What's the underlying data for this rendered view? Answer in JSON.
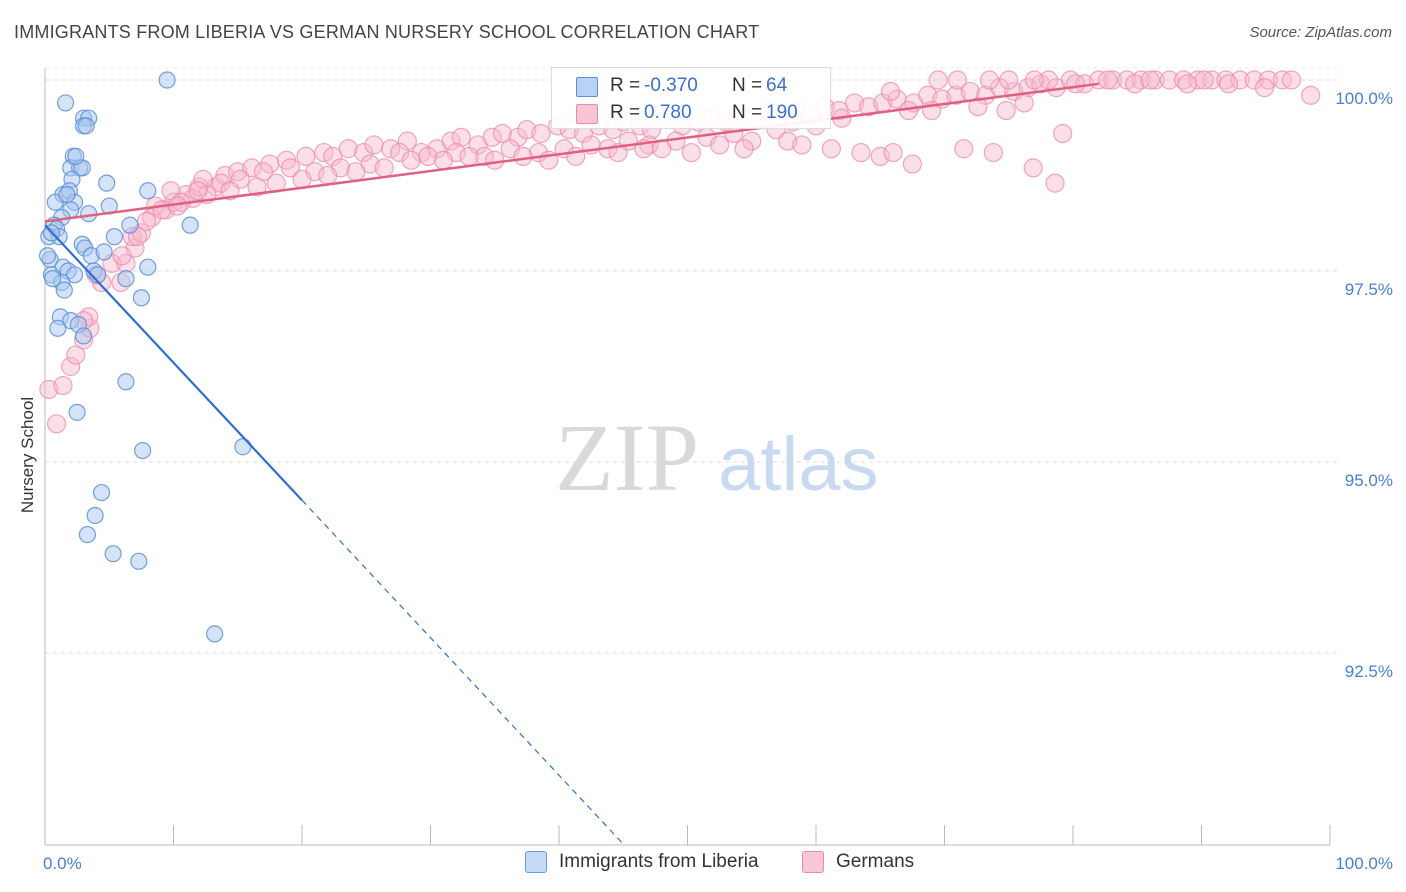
{
  "title": "IMMIGRANTS FROM LIBERIA VS GERMAN NURSERY SCHOOL CORRELATION CHART",
  "source": "Source: ZipAtlas.com",
  "colors": {
    "blue_fill": "#aac8f0",
    "blue_stroke": "#5a8fd8",
    "blue_line": "#2f6fd0",
    "pink_fill": "#f7b8cc",
    "pink_stroke": "#ec8aaa",
    "pink_line": "#e0607f",
    "axis_text": "#4a7fd4",
    "grid": "#dddddd"
  },
  "legend": {
    "rows": [
      {
        "r_label": "R =",
        "r_value": "-0.370",
        "n_label": "N =",
        "n_value": "64"
      },
      {
        "r_label": "R =",
        "r_value": "0.780",
        "n_label": "N =",
        "n_value": "190"
      }
    ]
  },
  "chart_data": {
    "type": "scatter",
    "title": "IMMIGRANTS FROM LIBERIA VS GERMAN NURSERY SCHOOL CORRELATION CHART",
    "xlabel": "",
    "ylabel": "Nursery School",
    "xlim": [
      0,
      100
    ],
    "ylim": [
      90.0,
      100.25
    ],
    "x_tick_labels": [
      "0.0%",
      "100.0%"
    ],
    "y_ticks": [
      92.5,
      95.0,
      97.5,
      100.0
    ],
    "y_tick_labels": [
      "92.5%",
      "95.0%",
      "97.5%",
      "100.0%"
    ],
    "watermark": {
      "zip": "ZIP",
      "atlas": "atlas"
    },
    "series": [
      {
        "name": "Immigrants from Liberia",
        "R": -0.37,
        "N": 64,
        "trend": {
          "x0": 0.0,
          "y0": 98.1,
          "x1": 20.0,
          "y1": 94.5,
          "dash_to_x": 45.0
        },
        "points": [
          [
            9.5,
            100.0
          ],
          [
            1.6,
            99.7
          ],
          [
            3.0,
            99.5
          ],
          [
            3.4,
            99.5
          ],
          [
            3.0,
            99.4
          ],
          [
            3.2,
            99.4
          ],
          [
            2.2,
            99.0
          ],
          [
            2.0,
            98.85
          ],
          [
            2.7,
            98.85
          ],
          [
            2.9,
            98.85
          ],
          [
            2.1,
            98.7
          ],
          [
            4.8,
            98.65
          ],
          [
            8.0,
            98.55
          ],
          [
            1.4,
            98.5
          ],
          [
            1.9,
            98.55
          ],
          [
            0.8,
            98.4
          ],
          [
            2.3,
            98.4
          ],
          [
            5.0,
            98.35
          ],
          [
            2.0,
            98.3
          ],
          [
            3.4,
            98.25
          ],
          [
            1.3,
            98.2
          ],
          [
            0.7,
            98.1
          ],
          [
            0.9,
            98.05
          ],
          [
            6.6,
            98.1
          ],
          [
            11.3,
            98.1
          ],
          [
            0.3,
            97.95
          ],
          [
            1.1,
            97.95
          ],
          [
            5.4,
            97.95
          ],
          [
            0.5,
            98.0
          ],
          [
            2.9,
            97.85
          ],
          [
            3.1,
            97.8
          ],
          [
            3.6,
            97.7
          ],
          [
            4.6,
            97.75
          ],
          [
            0.4,
            97.65
          ],
          [
            1.4,
            97.55
          ],
          [
            3.8,
            97.5
          ],
          [
            8.0,
            97.55
          ],
          [
            0.5,
            97.45
          ],
          [
            1.8,
            97.5
          ],
          [
            2.3,
            97.45
          ],
          [
            4.1,
            97.45
          ],
          [
            6.3,
            97.4
          ],
          [
            1.3,
            97.35
          ],
          [
            0.6,
            97.4
          ],
          [
            1.5,
            97.25
          ],
          [
            7.5,
            97.15
          ],
          [
            1.2,
            96.9
          ],
          [
            2.0,
            96.85
          ],
          [
            2.6,
            96.8
          ],
          [
            1.0,
            96.75
          ],
          [
            3.0,
            96.65
          ],
          [
            6.3,
            96.05
          ],
          [
            2.5,
            95.65
          ],
          [
            7.6,
            95.15
          ],
          [
            15.4,
            95.2
          ],
          [
            4.4,
            94.6
          ],
          [
            3.9,
            94.3
          ],
          [
            3.3,
            94.05
          ],
          [
            5.3,
            93.8
          ],
          [
            7.3,
            93.7
          ],
          [
            13.2,
            92.75
          ],
          [
            0.2,
            97.7
          ],
          [
            1.7,
            98.5
          ],
          [
            2.4,
            99.0
          ]
        ]
      },
      {
        "name": "Germans",
        "R": 0.78,
        "N": 190,
        "trend": {
          "x0": 0.0,
          "y0": 98.15,
          "x1": 82.0,
          "y1": 99.95
        },
        "points": [
          [
            0.3,
            95.95
          ],
          [
            1.4,
            96.0
          ],
          [
            0.9,
            95.5
          ],
          [
            2.0,
            96.25
          ],
          [
            2.4,
            96.4
          ],
          [
            3.0,
            96.6
          ],
          [
            3.5,
            96.75
          ],
          [
            3.4,
            96.9
          ],
          [
            4.4,
            97.35
          ],
          [
            5.9,
            97.35
          ],
          [
            5.2,
            97.6
          ],
          [
            6.3,
            97.6
          ],
          [
            7.0,
            97.8
          ],
          [
            6.8,
            97.95
          ],
          [
            7.5,
            98.0
          ],
          [
            8.3,
            98.2
          ],
          [
            9.4,
            98.3
          ],
          [
            8.6,
            98.35
          ],
          [
            10.0,
            98.4
          ],
          [
            11.0,
            98.5
          ],
          [
            9.8,
            98.55
          ],
          [
            12.0,
            98.6
          ],
          [
            13.3,
            98.6
          ],
          [
            12.3,
            98.7
          ],
          [
            14.0,
            98.75
          ],
          [
            15.0,
            98.8
          ],
          [
            16.1,
            98.85
          ],
          [
            17.5,
            98.9
          ],
          [
            18.8,
            98.95
          ],
          [
            20.3,
            99.0
          ],
          [
            21.7,
            99.05
          ],
          [
            22.4,
            99.0
          ],
          [
            23.6,
            99.1
          ],
          [
            24.8,
            99.05
          ],
          [
            25.6,
            99.15
          ],
          [
            26.9,
            99.1
          ],
          [
            28.2,
            99.2
          ],
          [
            29.3,
            99.05
          ],
          [
            30.5,
            99.1
          ],
          [
            31.6,
            99.2
          ],
          [
            32.4,
            99.25
          ],
          [
            33.7,
            99.15
          ],
          [
            34.8,
            99.25
          ],
          [
            35.6,
            99.3
          ],
          [
            36.8,
            99.25
          ],
          [
            37.5,
            99.35
          ],
          [
            38.6,
            99.3
          ],
          [
            39.9,
            99.4
          ],
          [
            40.8,
            99.35
          ],
          [
            41.9,
            99.3
          ],
          [
            43.1,
            99.4
          ],
          [
            44.2,
            99.35
          ],
          [
            45.0,
            99.45
          ],
          [
            46.3,
            99.4
          ],
          [
            47.2,
            99.35
          ],
          [
            48.5,
            99.5
          ],
          [
            49.6,
            99.4
          ],
          [
            50.8,
            99.45
          ],
          [
            51.9,
            99.5
          ],
          [
            53.0,
            99.45
          ],
          [
            54.2,
            99.55
          ],
          [
            55.3,
            99.5
          ],
          [
            56.4,
            99.6
          ],
          [
            57.2,
            99.55
          ],
          [
            58.5,
            99.6
          ],
          [
            59.6,
            99.55
          ],
          [
            60.7,
            99.65
          ],
          [
            61.8,
            99.6
          ],
          [
            63.0,
            99.7
          ],
          [
            64.1,
            99.65
          ],
          [
            65.2,
            99.7
          ],
          [
            66.3,
            99.75
          ],
          [
            67.6,
            99.7
          ],
          [
            68.7,
            99.8
          ],
          [
            69.8,
            99.75
          ],
          [
            70.9,
            99.8
          ],
          [
            72.0,
            99.85
          ],
          [
            73.2,
            99.8
          ],
          [
            74.3,
            99.9
          ],
          [
            75.4,
            99.85
          ],
          [
            76.5,
            99.9
          ],
          [
            77.5,
            99.95
          ],
          [
            78.7,
            99.9
          ],
          [
            79.8,
            100.0
          ],
          [
            80.9,
            99.95
          ],
          [
            82.0,
            100.0
          ],
          [
            83.1,
            100.0
          ],
          [
            84.2,
            100.0
          ],
          [
            85.3,
            100.0
          ],
          [
            86.4,
            100.0
          ],
          [
            87.5,
            100.0
          ],
          [
            88.6,
            100.0
          ],
          [
            89.7,
            100.0
          ],
          [
            90.8,
            100.0
          ],
          [
            91.9,
            100.0
          ],
          [
            93.0,
            100.0
          ],
          [
            94.1,
            100.0
          ],
          [
            95.2,
            100.0
          ],
          [
            96.3,
            100.0
          ],
          [
            97.0,
            100.0
          ],
          [
            75.0,
            100.0
          ],
          [
            73.5,
            100.0
          ],
          [
            71.0,
            100.0
          ],
          [
            69.5,
            100.0
          ],
          [
            84.8,
            99.95
          ],
          [
            88.9,
            99.95
          ],
          [
            92.1,
            99.95
          ],
          [
            94.9,
            99.9
          ],
          [
            98.5,
            99.8
          ],
          [
            86.0,
            100.0
          ],
          [
            90.2,
            100.0
          ],
          [
            82.7,
            100.0
          ],
          [
            80.2,
            99.95
          ],
          [
            78.1,
            100.0
          ],
          [
            77.0,
            100.0
          ],
          [
            65.8,
            99.85
          ],
          [
            67.2,
            99.6
          ],
          [
            69.0,
            99.6
          ],
          [
            72.6,
            99.65
          ],
          [
            74.8,
            99.6
          ],
          [
            76.2,
            99.7
          ],
          [
            62.0,
            99.5
          ],
          [
            60.0,
            99.4
          ],
          [
            58.2,
            99.45
          ],
          [
            56.9,
            99.35
          ],
          [
            55.0,
            99.2
          ],
          [
            53.6,
            99.3
          ],
          [
            51.5,
            99.25
          ],
          [
            49.1,
            99.2
          ],
          [
            47.0,
            99.15
          ],
          [
            45.4,
            99.2
          ],
          [
            43.8,
            99.1
          ],
          [
            42.5,
            99.15
          ],
          [
            40.4,
            99.1
          ],
          [
            38.4,
            99.05
          ],
          [
            36.2,
            99.1
          ],
          [
            34.2,
            99.0
          ],
          [
            32.0,
            99.05
          ],
          [
            29.8,
            99.0
          ],
          [
            27.6,
            99.05
          ],
          [
            25.3,
            98.9
          ],
          [
            23.0,
            98.85
          ],
          [
            21.0,
            98.8
          ],
          [
            19.1,
            98.85
          ],
          [
            17.0,
            98.8
          ],
          [
            15.2,
            98.7
          ],
          [
            13.7,
            98.65
          ],
          [
            12.6,
            98.5
          ],
          [
            11.5,
            98.45
          ],
          [
            10.6,
            98.4
          ],
          [
            9.1,
            98.3
          ],
          [
            7.9,
            98.15
          ],
          [
            48.0,
            99.1
          ],
          [
            52.5,
            99.15
          ],
          [
            57.8,
            99.2
          ],
          [
            61.2,
            99.1
          ],
          [
            63.5,
            99.05
          ],
          [
            65.0,
            99.0
          ],
          [
            67.5,
            98.9
          ],
          [
            66.0,
            99.05
          ],
          [
            71.5,
            99.1
          ],
          [
            73.8,
            99.05
          ],
          [
            76.9,
            98.85
          ],
          [
            79.2,
            99.3
          ],
          [
            78.6,
            98.65
          ],
          [
            58.9,
            99.15
          ],
          [
            54.4,
            99.1
          ],
          [
            50.3,
            99.05
          ],
          [
            46.6,
            99.1
          ],
          [
            44.6,
            99.05
          ],
          [
            41.3,
            99.0
          ],
          [
            39.2,
            98.95
          ],
          [
            37.2,
            99.0
          ],
          [
            35.0,
            98.95
          ],
          [
            33.0,
            99.0
          ],
          [
            31.0,
            98.95
          ],
          [
            28.5,
            98.95
          ],
          [
            26.4,
            98.85
          ],
          [
            24.2,
            98.8
          ],
          [
            22.0,
            98.75
          ],
          [
            20.0,
            98.7
          ],
          [
            18.0,
            98.65
          ],
          [
            16.5,
            98.6
          ],
          [
            14.4,
            98.55
          ],
          [
            11.9,
            98.55
          ],
          [
            10.3,
            98.35
          ],
          [
            7.2,
            97.95
          ],
          [
            6.0,
            97.7
          ],
          [
            4.0,
            97.45
          ],
          [
            3.0,
            96.85
          ]
        ]
      }
    ]
  },
  "bottom_legend": {
    "items": [
      {
        "label": "Immigrants from Liberia"
      },
      {
        "label": "Germans"
      }
    ]
  }
}
